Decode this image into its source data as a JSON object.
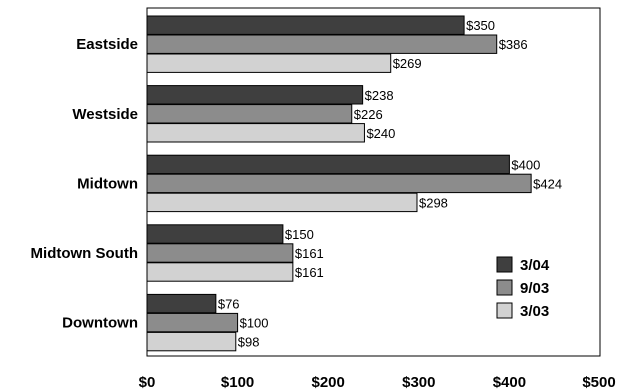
{
  "chart_data": {
    "type": "bar",
    "orientation": "horizontal",
    "categories": [
      "Eastside",
      "Westside",
      "Midtown",
      "Midtown South",
      "Downtown"
    ],
    "series": [
      {
        "name": "3/04",
        "values": [
          350,
          238,
          400,
          150,
          76
        ],
        "color": "#3f3f3f"
      },
      {
        "name": "9/03",
        "values": [
          386,
          226,
          424,
          161,
          100
        ],
        "color": "#8c8c8c"
      },
      {
        "name": "3/03",
        "values": [
          269,
          240,
          298,
          161,
          98
        ],
        "color": "#d2d2d2"
      }
    ],
    "value_prefix": "$",
    "xticks": [
      "$0",
      "$100",
      "$200",
      "$300",
      "$400",
      "$500"
    ],
    "xlim": [
      0,
      500
    ],
    "title": "",
    "xlabel": "",
    "ylabel": "",
    "grid": false,
    "legend_position": "bottom-right"
  }
}
